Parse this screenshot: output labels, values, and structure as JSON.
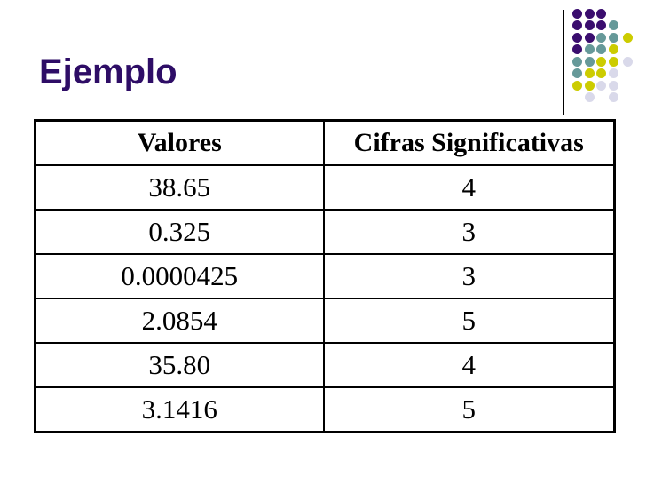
{
  "slide": {
    "title": "Ejemplo",
    "title_color": "#2E0D66",
    "background_color": "#FFFFFF"
  },
  "decoration": {
    "line_color": "#000000",
    "dot_colors": {
      "purple": "#3A0D6E",
      "teal": "#669999",
      "yellow": "#CCCC00",
      "lavender": "#D9D9EA"
    },
    "dot_pattern": [
      [
        {
          "c": 0,
          "k": "purple"
        },
        {
          "c": 1,
          "k": "purple"
        },
        {
          "c": 2,
          "k": "purple"
        }
      ],
      [
        {
          "c": 0,
          "k": "purple"
        },
        {
          "c": 1,
          "k": "purple"
        },
        {
          "c": 2,
          "k": "purple"
        },
        {
          "c": 3,
          "k": "teal"
        }
      ],
      [
        {
          "c": 0,
          "k": "purple"
        },
        {
          "c": 1,
          "k": "purple"
        },
        {
          "c": 2,
          "k": "teal"
        },
        {
          "c": 3,
          "k": "teal"
        },
        {
          "c": 4,
          "k": "yellow"
        }
      ],
      [
        {
          "c": 0,
          "k": "purple"
        },
        {
          "c": 1,
          "k": "teal"
        },
        {
          "c": 2,
          "k": "teal"
        },
        {
          "c": 3,
          "k": "yellow"
        }
      ],
      [
        {
          "c": 0,
          "k": "teal"
        },
        {
          "c": 1,
          "k": "teal"
        },
        {
          "c": 2,
          "k": "yellow"
        },
        {
          "c": 3,
          "k": "yellow"
        },
        {
          "c": 4,
          "k": "lavender"
        }
      ],
      [
        {
          "c": 0,
          "k": "teal"
        },
        {
          "c": 1,
          "k": "yellow"
        },
        {
          "c": 2,
          "k": "yellow"
        },
        {
          "c": 3,
          "k": "lavender"
        }
      ],
      [
        {
          "c": 0,
          "k": "yellow"
        },
        {
          "c": 1,
          "k": "yellow"
        },
        {
          "c": 2,
          "k": "lavender"
        },
        {
          "c": 3,
          "k": "lavender"
        }
      ],
      [
        {
          "c": 1,
          "k": "lavender"
        },
        {
          "c": 3,
          "k": "lavender"
        }
      ]
    ]
  },
  "table": {
    "headers": [
      "Valores",
      "Cifras Significativas"
    ],
    "rows": [
      [
        "38.65",
        "4"
      ],
      [
        "0.325",
        "3"
      ],
      [
        "0.0000425",
        "3"
      ],
      [
        "2.0854",
        "5"
      ],
      [
        "35.80",
        "4"
      ],
      [
        "3.1416",
        "5"
      ]
    ],
    "border_color": "#000000",
    "text_color": "#000000"
  }
}
